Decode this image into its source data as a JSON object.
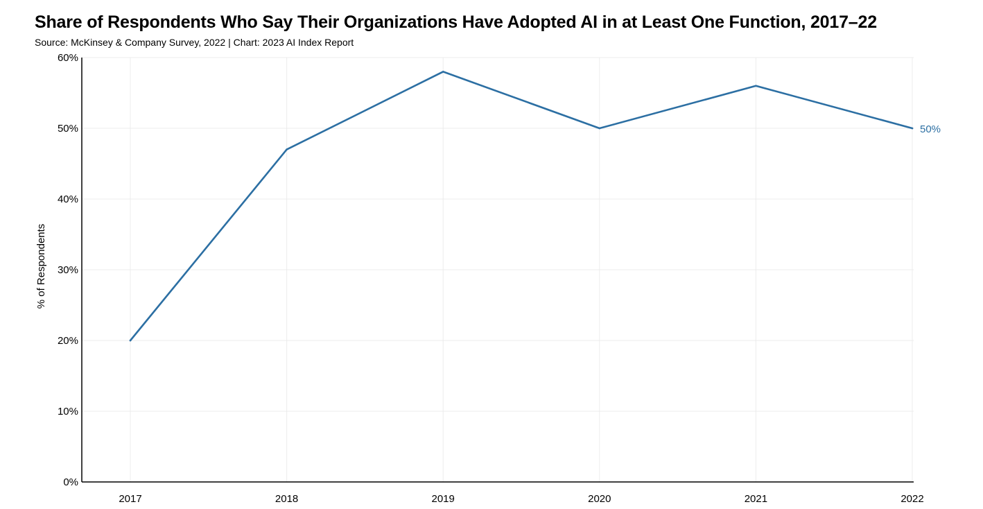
{
  "header": {
    "title": "Share of Respondents Who Say Their Organizations Have Adopted AI in at Least One Function, 2017–22",
    "subtitle": "Source: McKinsey & Company Survey, 2022 | Chart: 2023 AI Index Report"
  },
  "chart_data": {
    "type": "line",
    "title": "Share of Respondents Who Say Their Organizations Have Adopted AI in at Least One Function, 2017–22",
    "subtitle": "Source: McKinsey & Company Survey, 2022 | Chart: 2023 AI Index Report",
    "xlabel": "",
    "ylabel": "% of Respondents",
    "x": [
      "2017",
      "2018",
      "2019",
      "2020",
      "2021",
      "2022"
    ],
    "series": [
      {
        "values": [
          20,
          47,
          58,
          50,
          56,
          50
        ],
        "color": "#2c6fa3"
      }
    ],
    "ylim": [
      0,
      60
    ],
    "y_ticks": [
      0,
      10,
      20,
      30,
      40,
      50,
      60
    ],
    "y_tick_labels": [
      "0%",
      "10%",
      "20%",
      "30%",
      "40%",
      "50%",
      "60%"
    ],
    "end_label": "50%",
    "grid": true,
    "legend": "none"
  }
}
